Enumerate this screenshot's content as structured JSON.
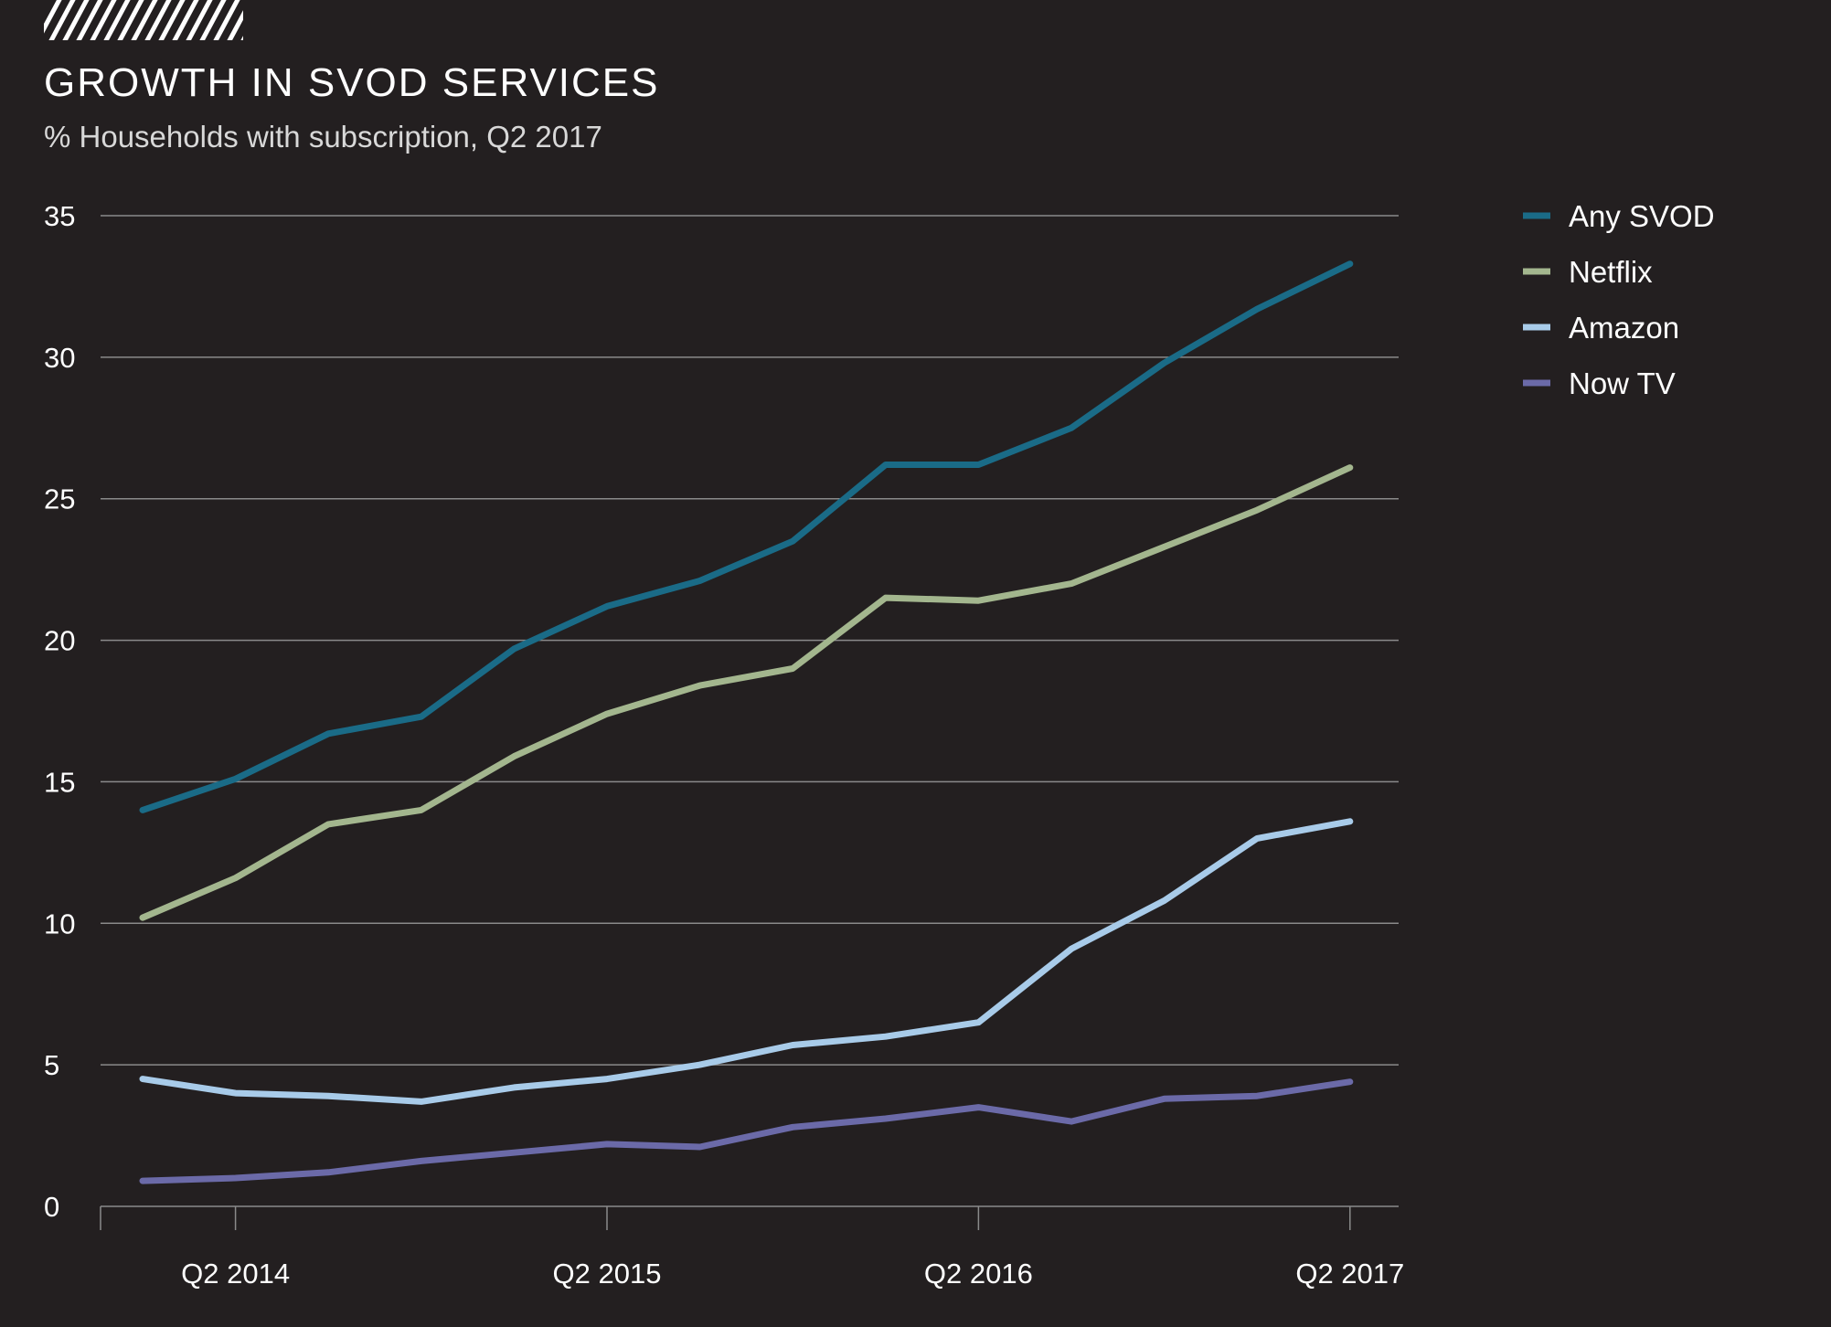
{
  "header": {
    "title": "GROWTH IN SVOD SERVICES",
    "subtitle": "% Households with subscription, Q2 2017"
  },
  "chart_data": {
    "type": "line",
    "title": "GROWTH IN SVOD SERVICES",
    "subtitle": "% Households with subscription, Q2 2017",
    "xlabel": "",
    "ylabel": "",
    "x_tick_labels": [
      "Q2 2014",
      "Q2 2015",
      "Q2 2016",
      "Q2 2017"
    ],
    "x_tick_index": [
      1,
      5,
      9,
      13
    ],
    "ylim": [
      0,
      35
    ],
    "yticks": [
      0,
      5,
      10,
      15,
      20,
      25,
      30,
      35
    ],
    "grid": true,
    "legend_position": "right",
    "series": [
      {
        "name": "Any SVOD",
        "color": "#1a6b87",
        "values": [
          14.0,
          15.1,
          16.7,
          17.3,
          19.7,
          21.2,
          22.1,
          23.5,
          26.2,
          26.2,
          27.5,
          29.8,
          31.7,
          33.3
        ]
      },
      {
        "name": "Netflix",
        "color": "#a3b68e",
        "values": [
          10.2,
          11.6,
          13.5,
          14.0,
          15.9,
          17.4,
          18.4,
          19.0,
          21.5,
          21.4,
          22.0,
          23.3,
          24.6,
          26.1
        ]
      },
      {
        "name": "Amazon",
        "color": "#a8cbe9",
        "values": [
          4.5,
          4.0,
          3.9,
          3.7,
          4.2,
          4.5,
          5.0,
          5.7,
          6.0,
          6.5,
          9.1,
          10.8,
          13.0,
          13.6
        ]
      },
      {
        "name": "Now TV",
        "color": "#6b6aa8",
        "values": [
          0.9,
          1.0,
          1.2,
          1.6,
          1.9,
          2.2,
          2.1,
          2.8,
          3.1,
          3.5,
          3.0,
          3.8,
          3.9,
          4.4
        ]
      }
    ]
  }
}
